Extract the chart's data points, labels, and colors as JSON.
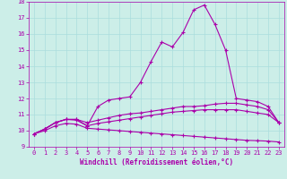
{
  "title": "",
  "xlabel": "Windchill (Refroidissement éolien,°C)",
  "ylabel": "",
  "bg_color": "#cceee8",
  "line_color": "#aa00aa",
  "grid_color": "#aadddd",
  "xlim": [
    -0.5,
    23.5
  ],
  "ylim": [
    9,
    18
  ],
  "xticks": [
    0,
    1,
    2,
    3,
    4,
    5,
    6,
    7,
    8,
    9,
    10,
    11,
    12,
    13,
    14,
    15,
    16,
    17,
    18,
    19,
    20,
    21,
    22,
    23
  ],
  "yticks": [
    9,
    10,
    11,
    12,
    13,
    14,
    15,
    16,
    17,
    18
  ],
  "curve1_x": [
    0,
    1,
    2,
    3,
    4,
    5,
    6,
    7,
    8,
    9,
    10,
    11,
    12,
    13,
    14,
    15,
    16,
    17,
    18,
    19,
    20,
    21,
    22,
    23
  ],
  "curve1_y": [
    9.8,
    10.1,
    10.5,
    10.7,
    10.7,
    10.3,
    11.5,
    11.9,
    12.0,
    12.1,
    13.0,
    14.3,
    15.5,
    15.2,
    16.1,
    17.5,
    17.8,
    16.6,
    15.0,
    12.0,
    11.9,
    11.8,
    11.5,
    10.5
  ],
  "curve2_x": [
    0,
    1,
    2,
    3,
    4,
    5,
    6,
    7,
    8,
    9,
    10,
    11,
    12,
    13,
    14,
    15,
    16,
    17,
    18,
    19,
    20,
    21,
    22,
    23
  ],
  "curve2_y": [
    9.8,
    10.1,
    10.5,
    10.7,
    10.7,
    10.5,
    10.65,
    10.8,
    10.95,
    11.05,
    11.1,
    11.2,
    11.3,
    11.4,
    11.5,
    11.5,
    11.55,
    11.65,
    11.7,
    11.7,
    11.6,
    11.5,
    11.3,
    10.5
  ],
  "curve3_x": [
    0,
    1,
    2,
    3,
    4,
    5,
    6,
    7,
    8,
    9,
    10,
    11,
    12,
    13,
    14,
    15,
    16,
    17,
    18,
    19,
    20,
    21,
    22,
    23
  ],
  "curve3_y": [
    9.8,
    10.1,
    10.5,
    10.7,
    10.65,
    10.3,
    10.45,
    10.55,
    10.65,
    10.75,
    10.85,
    10.95,
    11.05,
    11.15,
    11.2,
    11.25,
    11.3,
    11.3,
    11.3,
    11.3,
    11.2,
    11.1,
    11.0,
    10.5
  ],
  "curve4_x": [
    0,
    1,
    2,
    3,
    4,
    5,
    6,
    7,
    8,
    9,
    10,
    11,
    12,
    13,
    14,
    15,
    16,
    17,
    18,
    19,
    20,
    21,
    22,
    23
  ],
  "curve4_y": [
    9.8,
    10.0,
    10.3,
    10.45,
    10.4,
    10.15,
    10.1,
    10.05,
    10.0,
    9.95,
    9.9,
    9.85,
    9.8,
    9.75,
    9.7,
    9.65,
    9.6,
    9.55,
    9.5,
    9.45,
    9.4,
    9.38,
    9.35,
    9.3
  ]
}
